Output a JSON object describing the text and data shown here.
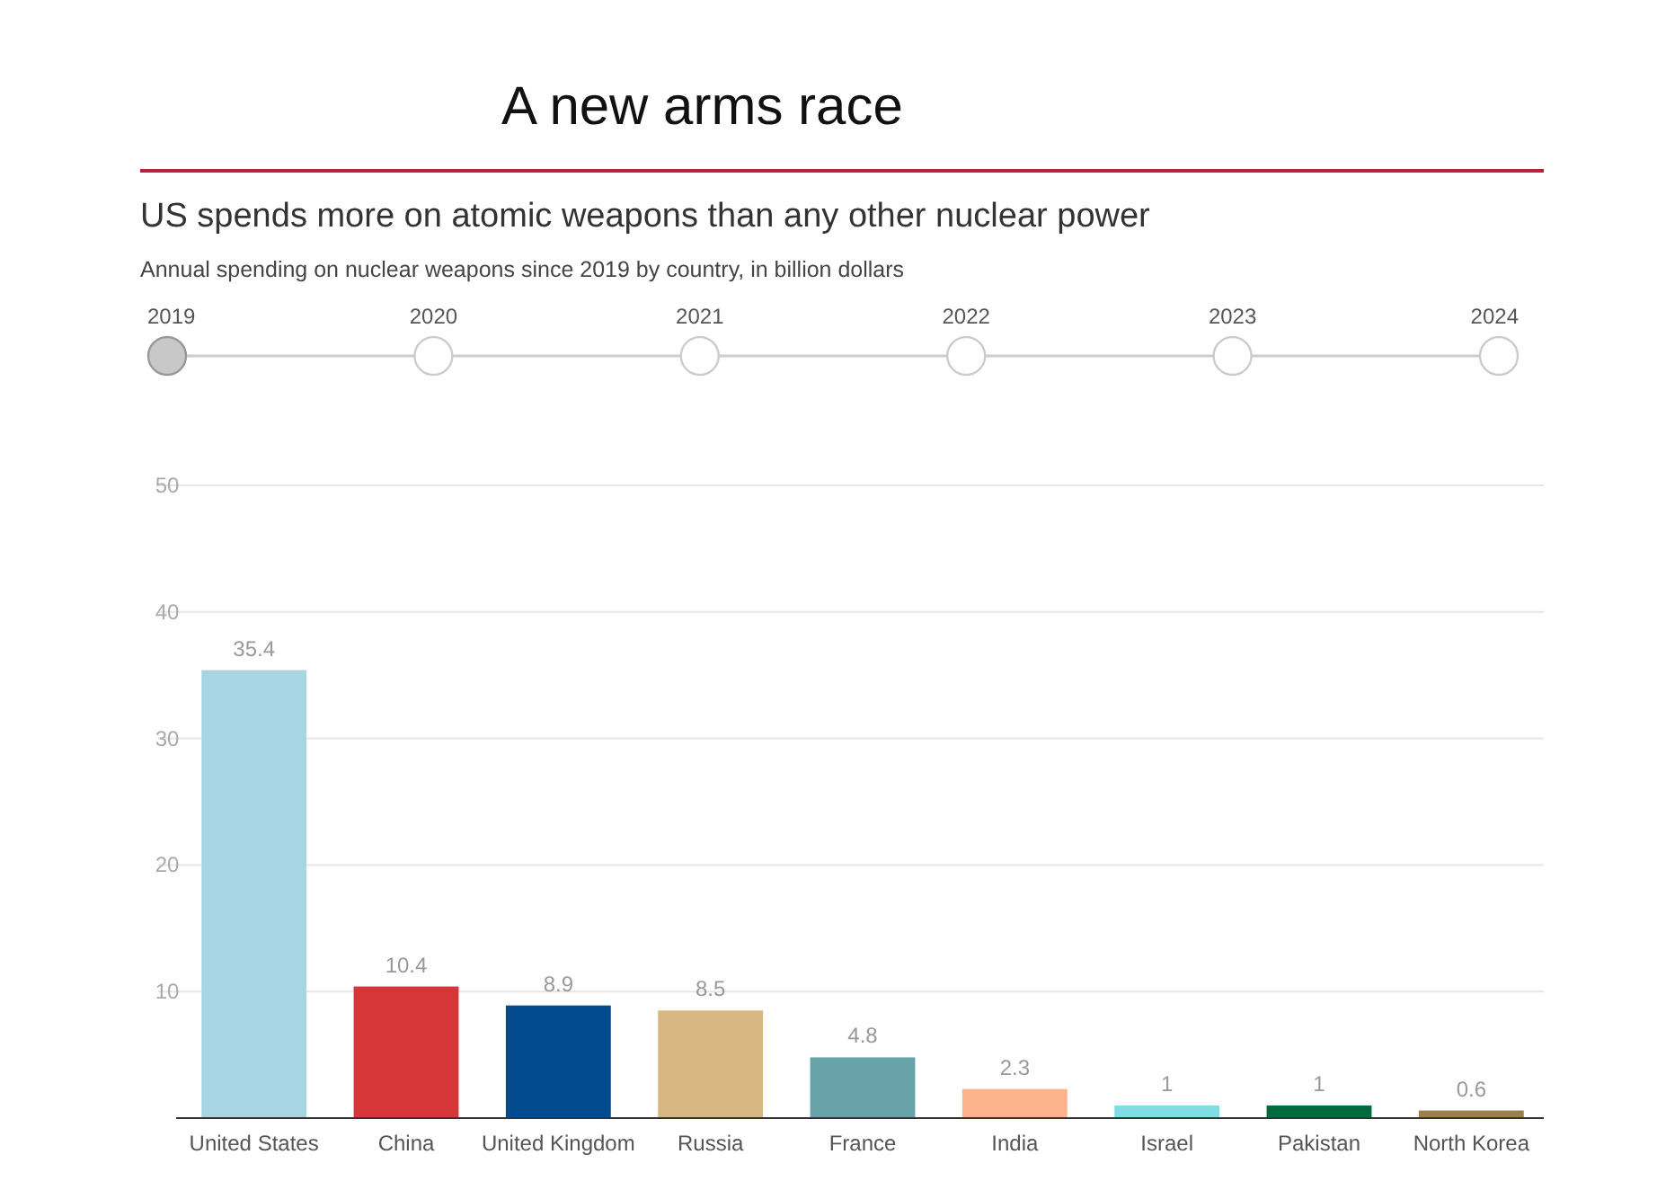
{
  "chart_data": {
    "type": "bar",
    "title": "A new arms race",
    "subtitle": "US spends more on atomic weapons than any other nuclear power",
    "annotations": [
      "Annual spending on nuclear weapons since 2019 by country, in billion dollars",
      "2019",
      "2020",
      "2021",
      "2022",
      "2023",
      "2024"
    ],
    "categories": [
      "United States",
      "China",
      "United Kingdom",
      "Russia",
      "France",
      "India",
      "Israel",
      "Pakistan",
      "North Korea"
    ],
    "values": [
      35.4,
      10.4,
      8.9,
      8.5,
      4.8,
      2.3,
      1,
      1,
      0.6
    ],
    "colors": [
      "#a8d5e2",
      "#d63638",
      "#024b8e",
      "#d9b783",
      "#67a3a8",
      "#fbb48c",
      "#7fdde3",
      "#006b3f",
      "#9b8149"
    ],
    "ylim": [
      0,
      50
    ],
    "yticks": [
      10,
      20,
      30,
      40,
      50
    ],
    "grid": "y",
    "data_labels": true
  }
}
